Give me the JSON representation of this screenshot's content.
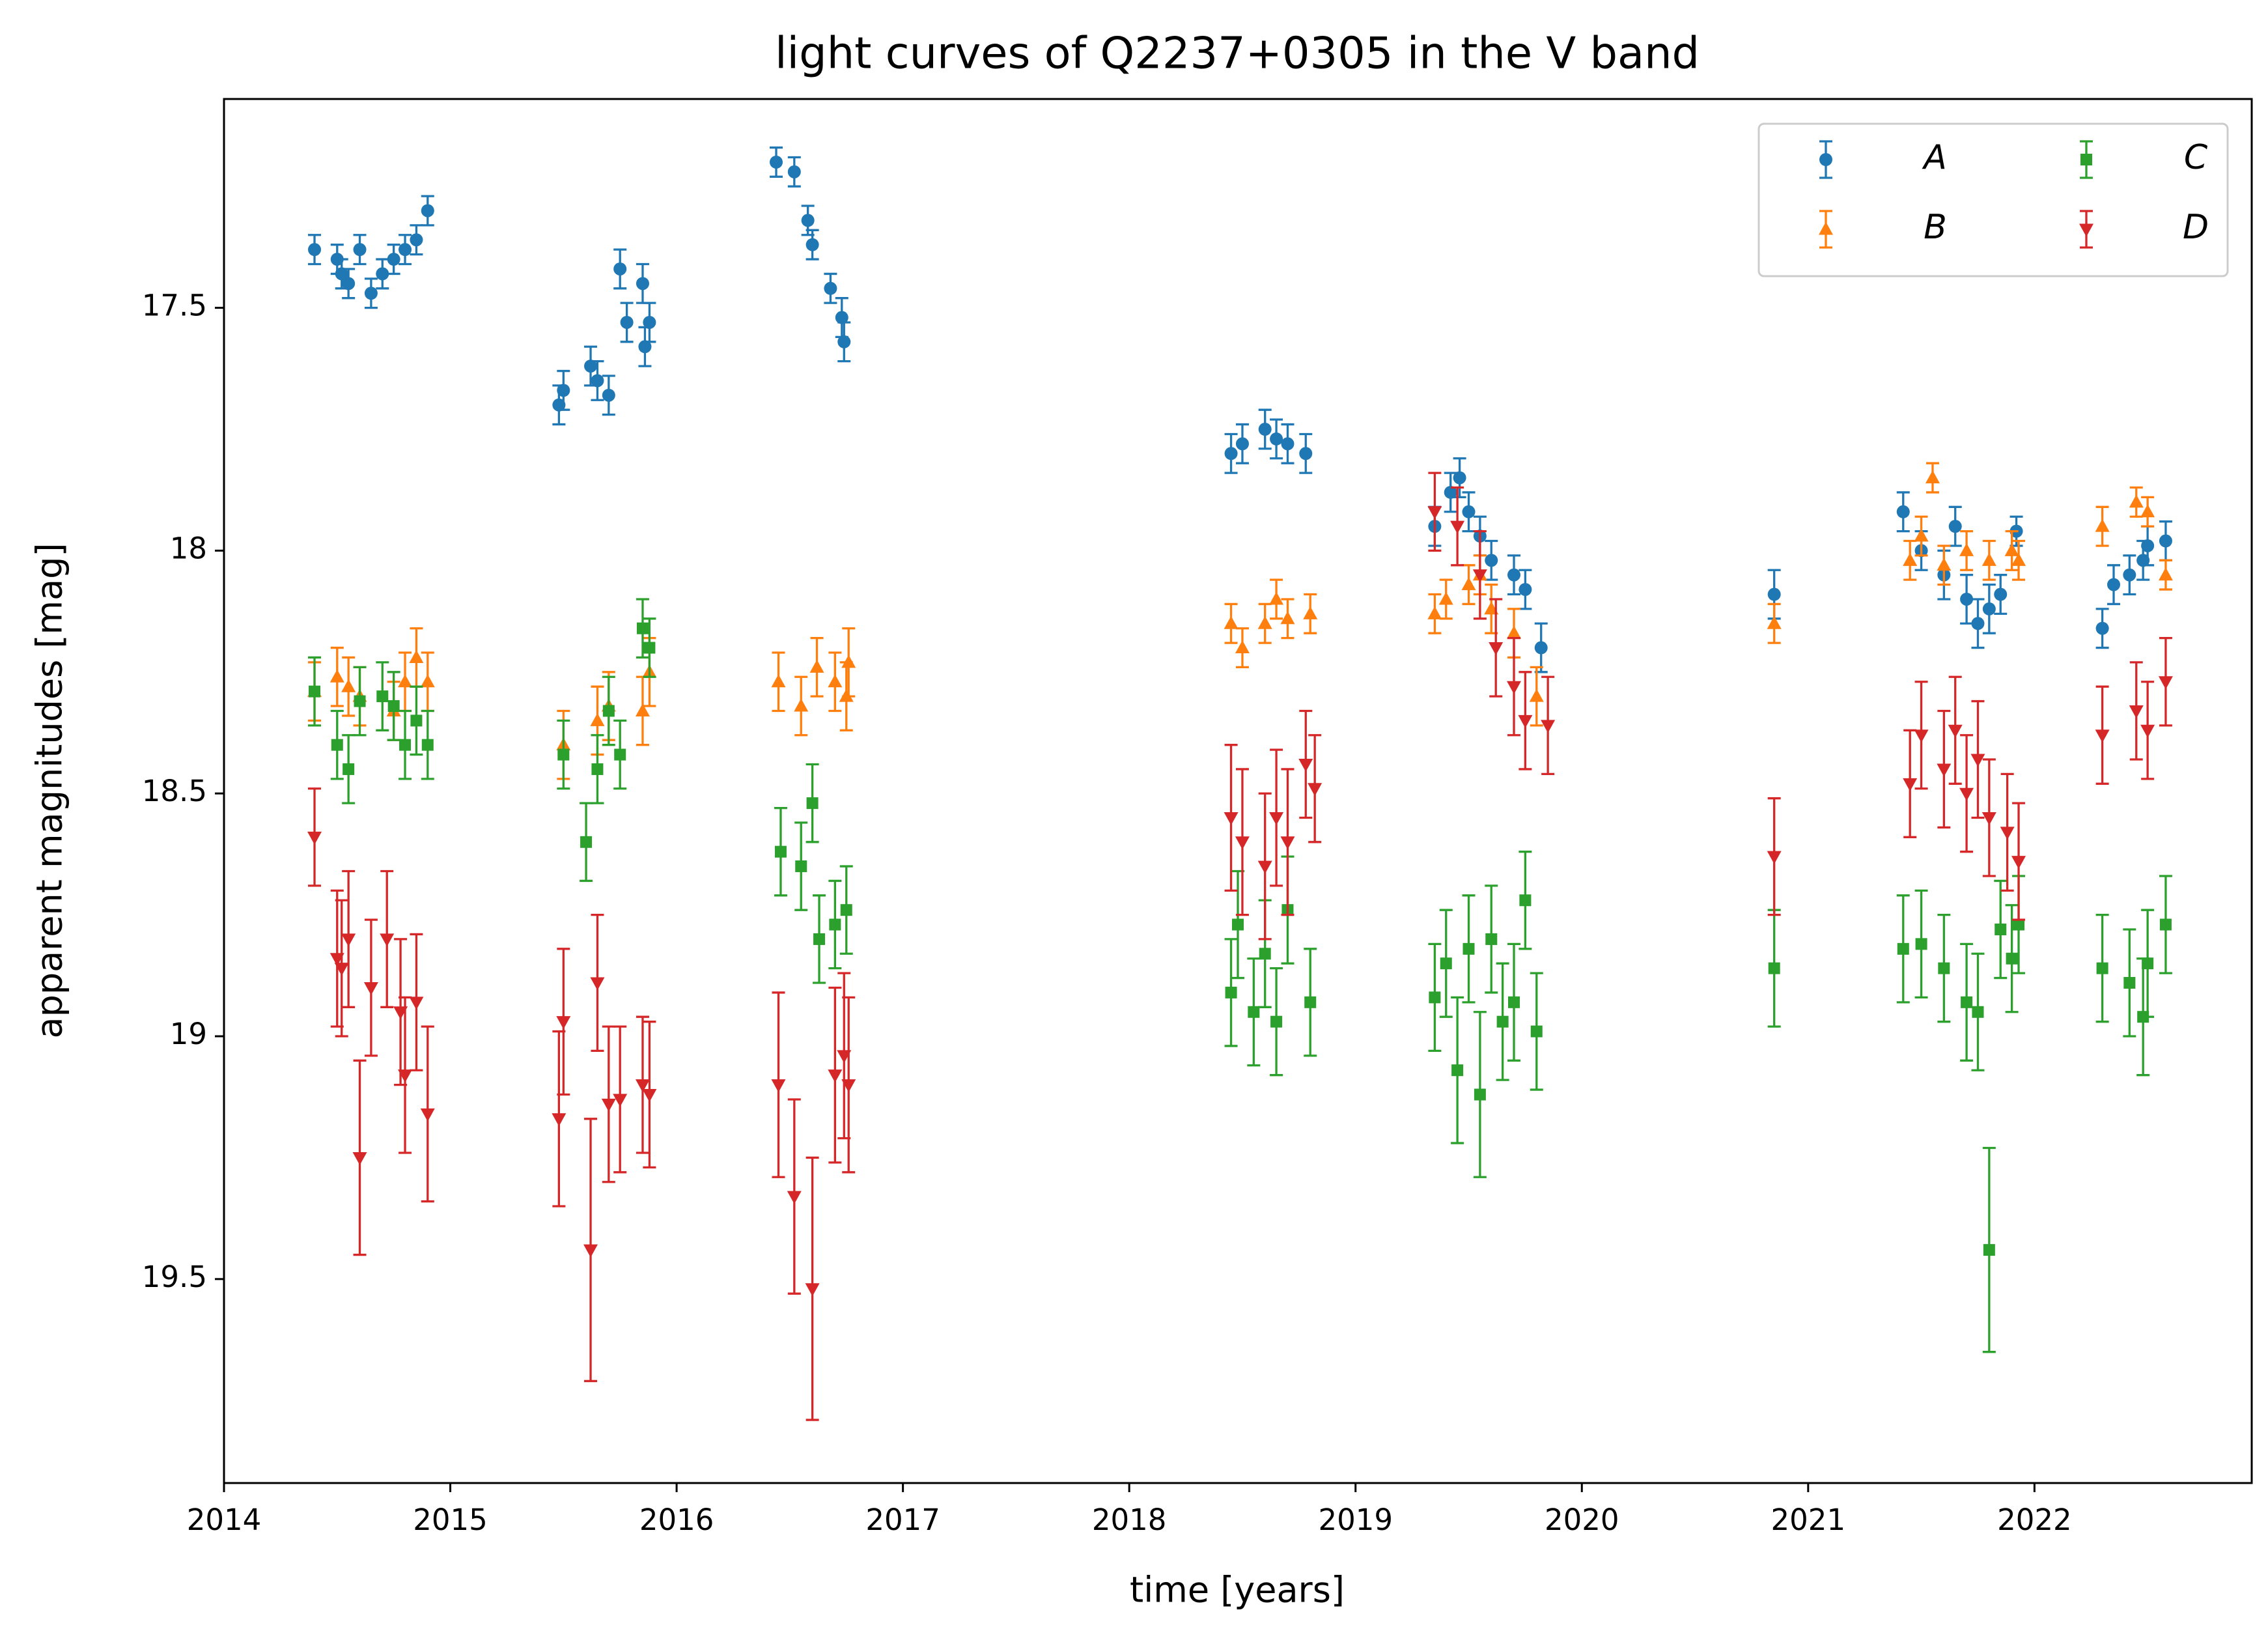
{
  "chart_data": {
    "type": "errorbar",
    "title": "light curves of Q2237+0305 in the V band",
    "xlabel": "time [years]",
    "ylabel": "apparent magnitudes [mag]",
    "xlim": [
      2014.0,
      2022.96
    ],
    "xticks": [
      2014,
      2015,
      2016,
      2017,
      2018,
      2019,
      2020,
      2021,
      2022
    ],
    "ylim": [
      17.07,
      19.92
    ],
    "y_inverted": true,
    "yticks": [
      17.5,
      18.0,
      18.5,
      19.0,
      19.5
    ],
    "legend": "upper right",
    "legend_columns": 2,
    "series": [
      {
        "name": "A",
        "color": "#1f77b4",
        "marker": "circle",
        "x": [
          2014.4,
          2014.5,
          2014.52,
          2014.55,
          2014.6,
          2014.65,
          2014.7,
          2014.75,
          2014.8,
          2014.85,
          2014.9,
          2015.48,
          2015.5,
          2015.62,
          2015.65,
          2015.7,
          2015.75,
          2015.78,
          2015.85,
          2015.86,
          2015.88,
          2016.44,
          2016.52,
          2016.58,
          2016.6,
          2016.68,
          2016.73,
          2016.74,
          2018.45,
          2018.5,
          2018.6,
          2018.65,
          2018.7,
          2018.78,
          2019.35,
          2019.42,
          2019.46,
          2019.5,
          2019.55,
          2019.6,
          2019.7,
          2019.75,
          2019.82,
          2020.85,
          2021.42,
          2021.5,
          2021.6,
          2021.65,
          2021.7,
          2021.75,
          2021.8,
          2021.85,
          2021.92,
          2022.3,
          2022.35,
          2022.42,
          2022.48,
          2022.5,
          2022.58
        ],
        "values": [
          17.38,
          17.4,
          17.43,
          17.45,
          17.38,
          17.47,
          17.43,
          17.4,
          17.38,
          17.36,
          17.3,
          17.7,
          17.67,
          17.62,
          17.65,
          17.68,
          17.42,
          17.53,
          17.45,
          17.58,
          17.53,
          17.2,
          17.22,
          17.32,
          17.37,
          17.46,
          17.52,
          17.57,
          17.8,
          17.78,
          17.75,
          17.77,
          17.78,
          17.8,
          17.95,
          17.88,
          17.85,
          17.92,
          17.97,
          18.02,
          18.05,
          18.08,
          18.2,
          18.09,
          17.92,
          18.0,
          18.05,
          17.95,
          18.1,
          18.15,
          18.12,
          18.09,
          17.96,
          18.16,
          18.07,
          18.05,
          18.02,
          17.99,
          17.98
        ],
        "errors": [
          0.03,
          0.03,
          0.03,
          0.03,
          0.03,
          0.03,
          0.03,
          0.03,
          0.03,
          0.03,
          0.03,
          0.04,
          0.04,
          0.04,
          0.04,
          0.04,
          0.04,
          0.04,
          0.04,
          0.04,
          0.04,
          0.03,
          0.03,
          0.03,
          0.03,
          0.03,
          0.04,
          0.04,
          0.04,
          0.04,
          0.04,
          0.04,
          0.04,
          0.04,
          0.04,
          0.04,
          0.04,
          0.04,
          0.04,
          0.04,
          0.04,
          0.04,
          0.05,
          0.05,
          0.04,
          0.04,
          0.05,
          0.04,
          0.05,
          0.05,
          0.05,
          0.04,
          0.03,
          0.04,
          0.04,
          0.04,
          0.04,
          0.04,
          0.04
        ]
      },
      {
        "name": "B",
        "color": "#ff7f0e",
        "marker": "triangle-up",
        "x": [
          2014.4,
          2014.5,
          2014.55,
          2014.6,
          2014.75,
          2014.8,
          2014.85,
          2014.9,
          2015.5,
          2015.65,
          2015.7,
          2015.85,
          2015.88,
          2016.45,
          2016.55,
          2016.62,
          2016.7,
          2016.75,
          2016.76,
          2018.45,
          2018.5,
          2018.6,
          2018.65,
          2018.7,
          2018.8,
          2019.35,
          2019.4,
          2019.5,
          2019.55,
          2019.6,
          2019.7,
          2019.8,
          2020.85,
          2021.45,
          2021.5,
          2021.55,
          2021.6,
          2021.7,
          2021.8,
          2021.9,
          2021.93,
          2022.3,
          2022.45,
          2022.5,
          2022.58
        ],
        "values": [
          18.29,
          18.26,
          18.28,
          18.3,
          18.33,
          18.27,
          18.22,
          18.27,
          18.4,
          18.35,
          18.32,
          18.33,
          18.25,
          18.27,
          18.32,
          18.24,
          18.27,
          18.3,
          18.23,
          18.15,
          18.2,
          18.15,
          18.1,
          18.14,
          18.13,
          18.13,
          18.1,
          18.07,
          18.05,
          18.12,
          18.17,
          18.3,
          18.15,
          18.02,
          17.97,
          17.85,
          18.03,
          18.0,
          18.02,
          18.0,
          18.02,
          17.95,
          17.9,
          17.92,
          18.05
        ],
        "errors": [
          0.06,
          0.06,
          0.06,
          0.06,
          0.06,
          0.06,
          0.06,
          0.06,
          0.07,
          0.07,
          0.07,
          0.07,
          0.07,
          0.06,
          0.06,
          0.06,
          0.06,
          0.07,
          0.07,
          0.04,
          0.04,
          0.04,
          0.04,
          0.04,
          0.04,
          0.04,
          0.04,
          0.04,
          0.04,
          0.05,
          0.05,
          0.06,
          0.04,
          0.04,
          0.04,
          0.03,
          0.04,
          0.04,
          0.04,
          0.04,
          0.04,
          0.04,
          0.03,
          0.03,
          0.03
        ]
      },
      {
        "name": "C",
        "color": "#2ca02c",
        "marker": "square",
        "x": [
          2014.4,
          2014.5,
          2014.55,
          2014.6,
          2014.7,
          2014.75,
          2014.8,
          2014.85,
          2014.9,
          2015.5,
          2015.6,
          2015.65,
          2015.7,
          2015.75,
          2015.85,
          2015.88,
          2016.46,
          2016.55,
          2016.6,
          2016.63,
          2016.7,
          2016.75,
          2018.45,
          2018.48,
          2018.55,
          2018.6,
          2018.65,
          2018.7,
          2018.8,
          2019.35,
          2019.4,
          2019.45,
          2019.5,
          2019.55,
          2019.6,
          2019.65,
          2019.7,
          2019.75,
          2019.8,
          2020.85,
          2021.42,
          2021.5,
          2021.6,
          2021.7,
          2021.75,
          2021.8,
          2021.85,
          2021.9,
          2021.93,
          2022.3,
          2022.42,
          2022.48,
          2022.5,
          2022.58
        ],
        "values": [
          18.29,
          18.4,
          18.45,
          18.31,
          18.3,
          18.32,
          18.4,
          18.35,
          18.4,
          18.42,
          18.6,
          18.45,
          18.33,
          18.42,
          18.16,
          18.2,
          18.62,
          18.65,
          18.52,
          18.8,
          18.77,
          18.74,
          18.91,
          18.77,
          18.95,
          18.83,
          18.97,
          18.74,
          18.93,
          18.92,
          18.85,
          19.07,
          18.82,
          19.12,
          18.8,
          18.97,
          18.93,
          18.72,
          18.99,
          18.86,
          18.82,
          18.81,
          18.86,
          18.93,
          18.95,
          19.44,
          18.78,
          18.84,
          18.77,
          18.86,
          18.89,
          18.96,
          18.85,
          18.77
        ],
        "errors": [
          0.07,
          0.07,
          0.07,
          0.07,
          0.07,
          0.07,
          0.07,
          0.07,
          0.07,
          0.07,
          0.08,
          0.07,
          0.07,
          0.07,
          0.06,
          0.06,
          0.09,
          0.09,
          0.08,
          0.09,
          0.09,
          0.09,
          0.11,
          0.11,
          0.11,
          0.11,
          0.11,
          0.11,
          0.11,
          0.11,
          0.11,
          0.15,
          0.11,
          0.17,
          0.11,
          0.12,
          0.12,
          0.1,
          0.12,
          0.12,
          0.11,
          0.11,
          0.11,
          0.12,
          0.12,
          0.21,
          0.1,
          0.11,
          0.1,
          0.11,
          0.11,
          0.12,
          0.11,
          0.1
        ]
      },
      {
        "name": "D",
        "color": "#d62728",
        "marker": "triangle-down",
        "x": [
          2014.4,
          2014.5,
          2014.52,
          2014.55,
          2014.6,
          2014.65,
          2014.72,
          2014.78,
          2014.8,
          2014.85,
          2014.9,
          2015.48,
          2015.5,
          2015.62,
          2015.65,
          2015.7,
          2015.75,
          2015.85,
          2015.88,
          2016.45,
          2016.52,
          2016.6,
          2016.7,
          2016.74,
          2016.76,
          2018.45,
          2018.5,
          2018.6,
          2018.65,
          2018.7,
          2018.78,
          2018.82,
          2019.35,
          2019.45,
          2019.55,
          2019.62,
          2019.7,
          2019.75,
          2019.85,
          2020.85,
          2021.45,
          2021.5,
          2021.6,
          2021.65,
          2021.7,
          2021.75,
          2021.8,
          2021.88,
          2021.93,
          2022.3,
          2022.45,
          2022.5,
          2022.58
        ],
        "values": [
          18.59,
          18.84,
          18.86,
          18.8,
          19.25,
          18.9,
          18.8,
          18.95,
          19.08,
          18.93,
          19.16,
          19.17,
          18.97,
          19.44,
          18.89,
          19.14,
          19.13,
          19.1,
          19.12,
          19.1,
          19.33,
          19.52,
          19.08,
          19.04,
          19.1,
          18.55,
          18.6,
          18.65,
          18.55,
          18.6,
          18.44,
          18.49,
          17.92,
          17.95,
          18.05,
          18.2,
          18.28,
          18.35,
          18.36,
          18.63,
          18.48,
          18.38,
          18.45,
          18.37,
          18.5,
          18.43,
          18.55,
          18.58,
          18.64,
          18.38,
          18.33,
          18.37,
          18.27
        ],
        "errors": [
          0.1,
          0.14,
          0.14,
          0.14,
          0.2,
          0.14,
          0.14,
          0.15,
          0.16,
          0.14,
          0.18,
          0.18,
          0.15,
          0.27,
          0.14,
          0.16,
          0.15,
          0.14,
          0.15,
          0.19,
          0.2,
          0.27,
          0.18,
          0.17,
          0.18,
          0.15,
          0.15,
          0.15,
          0.14,
          0.15,
          0.11,
          0.11,
          0.08,
          0.08,
          0.09,
          0.1,
          0.1,
          0.1,
          0.1,
          0.12,
          0.11,
          0.11,
          0.12,
          0.11,
          0.12,
          0.12,
          0.12,
          0.12,
          0.12,
          0.1,
          0.1,
          0.1,
          0.09
        ]
      }
    ]
  }
}
